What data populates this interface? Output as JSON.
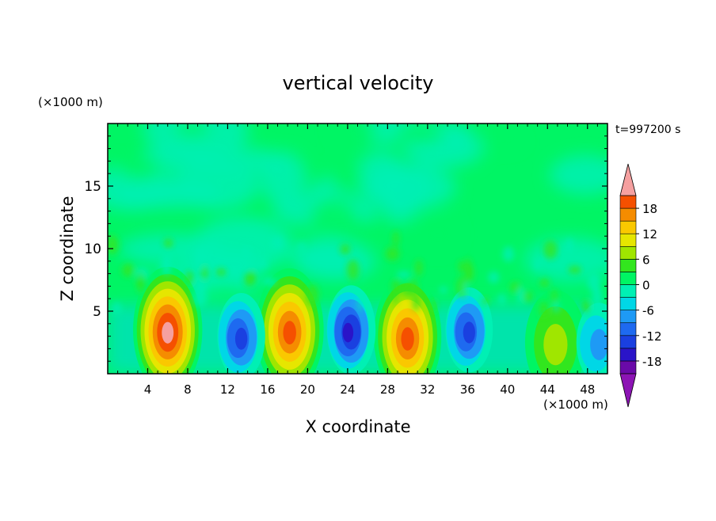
{
  "chart_data": {
    "type": "heatmap",
    "title": "vertical velocity",
    "xlabel": "X coordinate",
    "ylabel": "Z coordinate",
    "x_unit": "(×1000 m)",
    "y_unit": "(×1000 m)",
    "time_label": "t=997200 s",
    "xlim": [
      0,
      50
    ],
    "ylim": [
      0,
      20
    ],
    "x_ticks": [
      4,
      8,
      12,
      16,
      20,
      24,
      28,
      32,
      36,
      40,
      44,
      48
    ],
    "y_ticks": [
      5,
      10,
      15
    ],
    "colorbar": {
      "levels": [
        -21,
        -18,
        -15,
        -12,
        -9,
        -6,
        -3,
        0,
        3,
        6,
        9,
        12,
        15,
        18,
        21
      ],
      "tick_labels": [
        "18",
        "12",
        "6",
        "0",
        "-6",
        "-12",
        "-18"
      ],
      "tick_values": [
        18,
        12,
        6,
        0,
        -6,
        -12,
        -18
      ],
      "colors": [
        "#6a0aa8",
        "#2a14c8",
        "#1a40e0",
        "#1e6af0",
        "#1e9af5",
        "#00d7e6",
        "#00f0b4",
        "#00f564",
        "#32e61e",
        "#a0e600",
        "#e6e600",
        "#fac800",
        "#f58c00",
        "#f55000",
        "#e61e1e"
      ],
      "over_color": "#f5a0a0",
      "under_color": "#8c14b4"
    },
    "cells": [
      {
        "x": 6,
        "z": 3.5,
        "w": 22
      },
      {
        "x": 18.2,
        "z": 3.5,
        "w": 20
      },
      {
        "x": 30,
        "z": 3,
        "w": 19
      },
      {
        "x": 44.8,
        "z": 2.5,
        "w": 7
      },
      {
        "x": 13.2,
        "z": 3,
        "w": -14
      },
      {
        "x": 24.2,
        "z": 3.5,
        "w": -16
      },
      {
        "x": 36,
        "z": 3.5,
        "w": -13
      },
      {
        "x": 49,
        "z": 2.5,
        "w": -9
      }
    ]
  }
}
